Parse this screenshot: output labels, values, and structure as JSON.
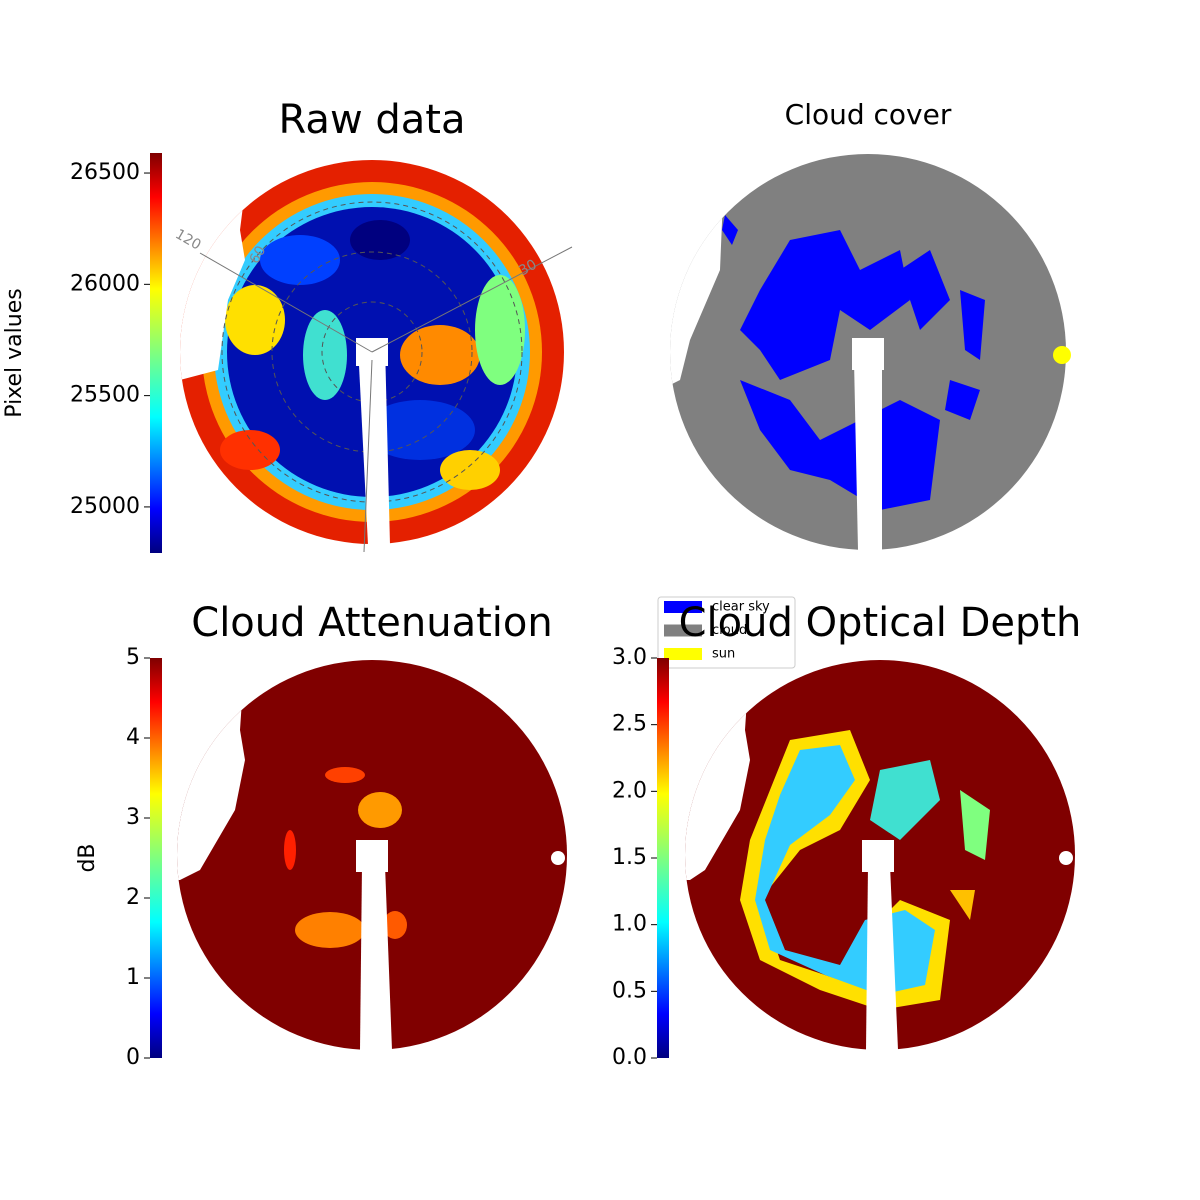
{
  "chart_data": [
    {
      "type": "heatmap-image",
      "title": "Raw data",
      "colorbar": {
        "label": "Pixel values",
        "lim": [
          24793,
          26590
        ],
        "ticks": [
          25000,
          25500,
          26000,
          26500
        ]
      },
      "polar_labels": [
        "120",
        "60",
        "30"
      ]
    },
    {
      "type": "classification",
      "title": "Cloud cover",
      "legend": [
        {
          "name": "clear sky",
          "color": "#0000ff"
        },
        {
          "name": "cloud",
          "color": "#808080"
        },
        {
          "name": "sun",
          "color": "#ffff00"
        }
      ]
    },
    {
      "type": "heatmap-image",
      "title": "Cloud Attenuation",
      "colorbar": {
        "label": "dB",
        "lim": [
          0,
          5
        ],
        "ticks": [
          0,
          1,
          2,
          3,
          4,
          5
        ]
      }
    },
    {
      "type": "heatmap-image",
      "title": "Cloud Optical Depth",
      "colorbar": {
        "lim": [
          0,
          3
        ],
        "ticks": [
          {
            "value": 0,
            "label": "0.0"
          },
          {
            "value": 0.5,
            "label": "0.5"
          },
          {
            "value": 1,
            "label": "1.0"
          },
          {
            "value": 1.5,
            "label": "1.5"
          },
          {
            "value": 2,
            "label": "2.0"
          },
          {
            "value": 2.5,
            "label": "2.5"
          },
          {
            "value": 3,
            "label": "3.0"
          }
        ]
      }
    }
  ]
}
